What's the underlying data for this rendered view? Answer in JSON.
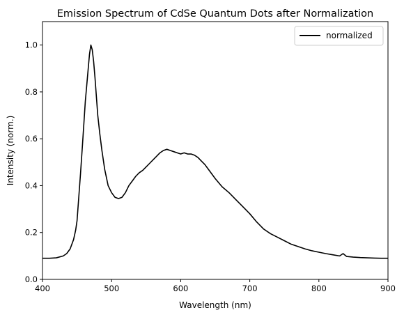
{
  "chart_data": {
    "type": "line",
    "title": "Emission Spectrum of CdSe Quantum Dots after Normalization",
    "xlabel": "Wavelength (nm)",
    "ylabel": "Intensity (norm.)",
    "xlim": [
      400,
      900
    ],
    "ylim": [
      0,
      1.1
    ],
    "xticks": [
      400,
      500,
      600,
      700,
      800,
      900
    ],
    "xtick_labels": [
      "400",
      "500",
      "600",
      "700",
      "800",
      "900"
    ],
    "yticks": [
      0,
      0.2,
      0.4,
      0.6,
      0.8,
      1.0
    ],
    "ytick_labels": [
      "0.0",
      "0.2",
      "0.4",
      "0.6",
      "0.8",
      "1.0"
    ],
    "grid": false,
    "legend": {
      "location": "upper right",
      "entries": [
        "normalized"
      ]
    },
    "series": [
      {
        "name": "normalized",
        "color": "#000000",
        "x": [
          400,
          410,
          420,
          430,
          435,
          440,
          445,
          448,
          450,
          452,
          455,
          458,
          460,
          462,
          465,
          468,
          470,
          472,
          474,
          476,
          478,
          480,
          483,
          486,
          490,
          495,
          500,
          505,
          510,
          515,
          520,
          525,
          530,
          535,
          540,
          545,
          550,
          555,
          560,
          565,
          570,
          575,
          580,
          585,
          590,
          595,
          600,
          605,
          610,
          615,
          620,
          625,
          630,
          635,
          640,
          645,
          650,
          660,
          670,
          680,
          690,
          700,
          710,
          720,
          730,
          740,
          750,
          760,
          770,
          780,
          790,
          800,
          810,
          820,
          830,
          835,
          840,
          850,
          860,
          870,
          880,
          890,
          900
        ],
        "y": [
          0.09,
          0.09,
          0.092,
          0.1,
          0.11,
          0.13,
          0.17,
          0.21,
          0.25,
          0.33,
          0.45,
          0.58,
          0.67,
          0.76,
          0.86,
          0.96,
          1.0,
          0.98,
          0.93,
          0.86,
          0.78,
          0.7,
          0.62,
          0.55,
          0.47,
          0.4,
          0.37,
          0.35,
          0.345,
          0.35,
          0.37,
          0.4,
          0.42,
          0.44,
          0.455,
          0.465,
          0.48,
          0.495,
          0.51,
          0.525,
          0.54,
          0.55,
          0.555,
          0.55,
          0.545,
          0.54,
          0.535,
          0.54,
          0.535,
          0.535,
          0.53,
          0.52,
          0.505,
          0.49,
          0.47,
          0.45,
          0.43,
          0.395,
          0.37,
          0.34,
          0.31,
          0.28,
          0.245,
          0.215,
          0.195,
          0.18,
          0.165,
          0.15,
          0.14,
          0.13,
          0.122,
          0.116,
          0.11,
          0.105,
          0.1,
          0.11,
          0.098,
          0.095,
          0.093,
          0.092,
          0.091,
          0.09,
          0.09
        ]
      }
    ]
  }
}
